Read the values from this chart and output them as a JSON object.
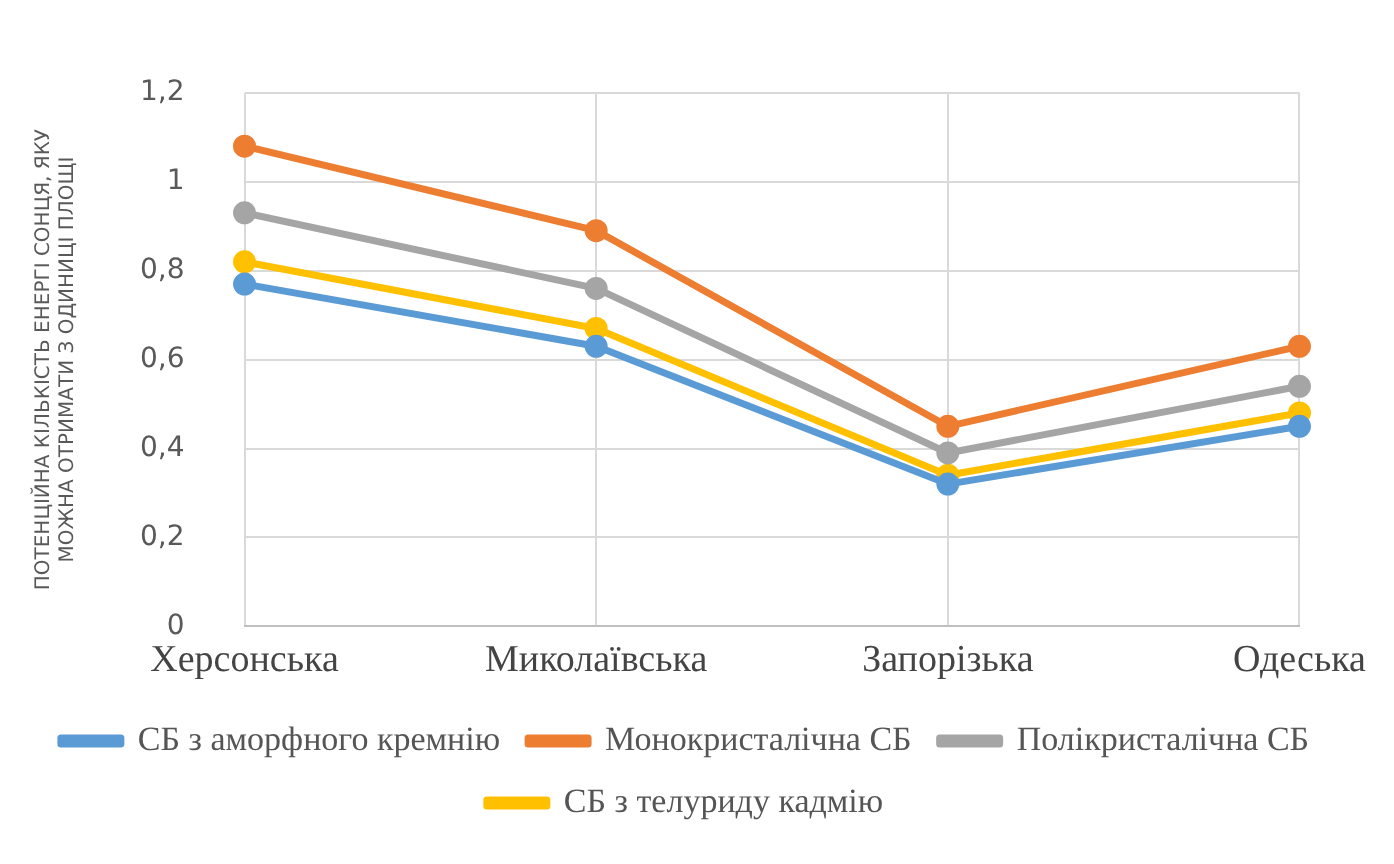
{
  "chart_data": {
    "type": "line",
    "ylabel": "ПОТЕНЦІЙНА КІЛЬКІСТЬ ЕНЕРГІ СОНЦЯ, ЯКУ\nМОЖНА ОТРИМАТИ З ОДИНИЦІ ПЛОЩІ",
    "categories": [
      "Херсонська",
      "Миколаївська",
      "Запорізька",
      "Одеська"
    ],
    "series": [
      {
        "name": "СБ з аморфного кремнію",
        "color": "#5b9bd5",
        "values": [
          0.77,
          0.63,
          0.32,
          0.45
        ]
      },
      {
        "name": "Монокристалічна СБ",
        "color": "#ed7d31",
        "values": [
          1.08,
          0.89,
          0.45,
          0.63
        ]
      },
      {
        "name": "Полікристалічна СБ",
        "color": "#a5a5a5",
        "values": [
          0.93,
          0.76,
          0.39,
          0.54
        ]
      },
      {
        "name": "СБ з телуриду кадмію",
        "color": "#ffc000",
        "values": [
          0.82,
          0.67,
          0.34,
          0.48
        ]
      }
    ],
    "ylim": [
      0,
      1.2
    ],
    "yticks": [
      0,
      {
        "value": 0.2,
        "label": "0,2"
      },
      {
        "value": 0.4,
        "label": "0,4"
      },
      {
        "value": 0.6,
        "label": "0,6"
      },
      {
        "value": 0.8,
        "label": "0,8"
      },
      1,
      {
        "value": 1.2,
        "label": "1,2"
      }
    ],
    "grid": true,
    "legend": "bottom",
    "marker": "circle",
    "line_style": "solid"
  }
}
